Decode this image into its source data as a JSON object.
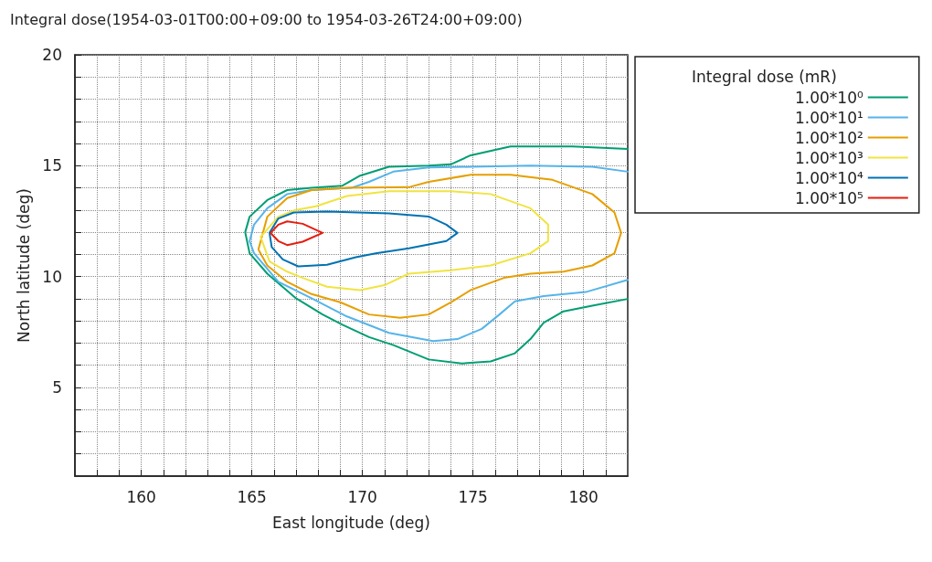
{
  "chart_data": {
    "type": "line",
    "title": "Integral dose(1954-03-01T00:00+09:00 to 1954-03-26T24:00+09:00)",
    "xlabel": "East longitude (deg)",
    "ylabel": "North latitude (deg)",
    "legend_title": "Integral dose (mR)",
    "legend": "right",
    "grid": true,
    "line_style": "solid",
    "xlim": [
      157,
      182
    ],
    "ylim": [
      1,
      20
    ],
    "xticks": [
      {
        "value": 158,
        "label": null
      },
      {
        "value": 159,
        "label": null
      },
      160,
      {
        "value": 161,
        "label": null
      },
      {
        "value": 162,
        "label": null
      },
      {
        "value": 163,
        "label": null
      },
      {
        "value": 164,
        "label": null
      },
      165,
      {
        "value": 166,
        "label": null
      },
      {
        "value": 167,
        "label": null
      },
      {
        "value": 168,
        "label": null
      },
      {
        "value": 169,
        "label": null
      },
      170,
      {
        "value": 171,
        "label": null
      },
      {
        "value": 172,
        "label": null
      },
      {
        "value": 173,
        "label": null
      },
      {
        "value": 174,
        "label": null
      },
      175,
      {
        "value": 176,
        "label": null
      },
      {
        "value": 177,
        "label": null
      },
      {
        "value": 178,
        "label": null
      },
      {
        "value": 179,
        "label": null
      },
      180,
      {
        "value": 181,
        "label": null
      }
    ],
    "yticks": [
      {
        "value": 2,
        "label": null
      },
      {
        "value": 3,
        "label": null
      },
      {
        "value": 4,
        "label": null
      },
      5,
      {
        "value": 6,
        "label": null
      },
      {
        "value": 7,
        "label": null
      },
      {
        "value": 8,
        "label": null
      },
      {
        "value": 9,
        "label": null
      },
      10,
      {
        "value": 11,
        "label": null
      },
      {
        "value": 12,
        "label": null
      },
      {
        "value": 13,
        "label": null
      },
      {
        "value": 14,
        "label": null
      },
      15,
      {
        "value": 16,
        "label": null
      },
      {
        "value": 17,
        "label": null
      },
      {
        "value": 18,
        "label": null
      },
      {
        "value": 19,
        "label": null
      },
      20
    ],
    "series": [
      {
        "name": "1.00*10⁰",
        "color": "#009e73",
        "x": [
          182,
          179.5,
          176.7,
          174.9,
          174,
          173,
          171.2,
          169.9,
          169.1,
          167.7,
          166.6,
          165.7,
          164.9,
          164.7,
          164.9,
          165.7,
          167,
          168.2,
          169.1,
          170.3,
          171.4,
          173,
          174.5,
          175.8,
          176.9,
          177.6,
          178.2,
          179.1,
          180.4,
          182
        ],
        "values": [
          15.75,
          15.87,
          15.87,
          15.47,
          15.06,
          15,
          14.95,
          14.55,
          14.1,
          14,
          13.9,
          13.45,
          12.7,
          12,
          11.05,
          10.13,
          9.02,
          8.29,
          7.83,
          7.27,
          6.91,
          6.26,
          6.08,
          6.17,
          6.54,
          7.18,
          7.92,
          8.43,
          8.69,
          8.99
        ]
      },
      {
        "name": "1.00*10¹",
        "color": "#56b4e9",
        "x": [
          182,
          180.4,
          177.6,
          174.9,
          173,
          171.4,
          170.3,
          169.5,
          167.7,
          166.6,
          165.7,
          165.1,
          164.9,
          165.1,
          166.2,
          167.7,
          169.3,
          171.2,
          173.2,
          174.3,
          175.4,
          176.2,
          176.9,
          178.2,
          180.1,
          182
        ],
        "values": [
          14.73,
          14.95,
          15,
          14.95,
          14.92,
          14.73,
          14.27,
          14,
          13.9,
          13.72,
          13.08,
          12.34,
          11.6,
          11.05,
          9.76,
          9.02,
          8.2,
          7.46,
          7.09,
          7.18,
          7.64,
          8.29,
          8.88,
          9.12,
          9.3,
          9.85
        ]
      },
      {
        "name": "1.00*10²",
        "color": "#e69f00",
        "x": [
          165.3,
          165.7,
          166.6,
          167.7,
          169.3,
          172.1,
          173,
          174.9,
          176.7,
          178.6,
          180.4,
          181.4,
          181.7,
          181.4,
          180.4,
          179.1,
          177.6,
          176.4,
          174.9,
          174,
          173,
          171.7,
          170.3,
          169,
          167.7,
          166.6,
          165.7,
          165.32
        ],
        "values": [
          11.23,
          12.7,
          13.54,
          13.9,
          14,
          14.03,
          14.27,
          14.59,
          14.59,
          14.36,
          13.72,
          12.89,
          11.97,
          11.05,
          10.5,
          10.22,
          10.13,
          9.94,
          9.39,
          8.84,
          8.29,
          8.14,
          8.29,
          8.84,
          9.21,
          9.76,
          10.5,
          11.18
        ]
      },
      {
        "name": "1.00*10³",
        "color": "#f0e442",
        "x": [
          165.4,
          166.2,
          166.9,
          167.9,
          169.3,
          171.2,
          174,
          175.8,
          177.6,
          178.4,
          178.4,
          177.6,
          175.8,
          174,
          172.1,
          171,
          169.9,
          168.4,
          167.3,
          166.6,
          165.8,
          165.42
        ],
        "values": [
          11.79,
          12.7,
          12.98,
          13.17,
          13.63,
          13.85,
          13.85,
          13.72,
          13.08,
          12.34,
          11.6,
          11.05,
          10.5,
          10.28,
          10.13,
          9.61,
          9.39,
          9.54,
          9.94,
          10.22,
          10.68,
          11.73
        ]
      },
      {
        "name": "1.00*10⁴",
        "color": "#0072b2",
        "x": [
          165.8,
          166.2,
          166.9,
          168.4,
          171.2,
          173,
          173.8,
          174.3,
          173.8,
          172.1,
          170.6,
          169.7,
          168.4,
          167.1,
          166.4,
          165.9,
          165.81
        ],
        "values": [
          11.97,
          12.62,
          12.89,
          12.93,
          12.85,
          12.71,
          12.34,
          11.97,
          11.6,
          11.27,
          11.05,
          10.87,
          10.53,
          10.46,
          10.77,
          11.33,
          11.91
        ]
      },
      {
        "name": "1.00*10⁵",
        "color": "#e51e10",
        "x": [
          165.85,
          166.2,
          166.6,
          167.3,
          168.2,
          167.3,
          166.6,
          166.2,
          165.88
        ],
        "values": [
          11.97,
          12.34,
          12.49,
          12.38,
          11.97,
          11.57,
          11.42,
          11.6,
          11.93
        ]
      }
    ]
  }
}
